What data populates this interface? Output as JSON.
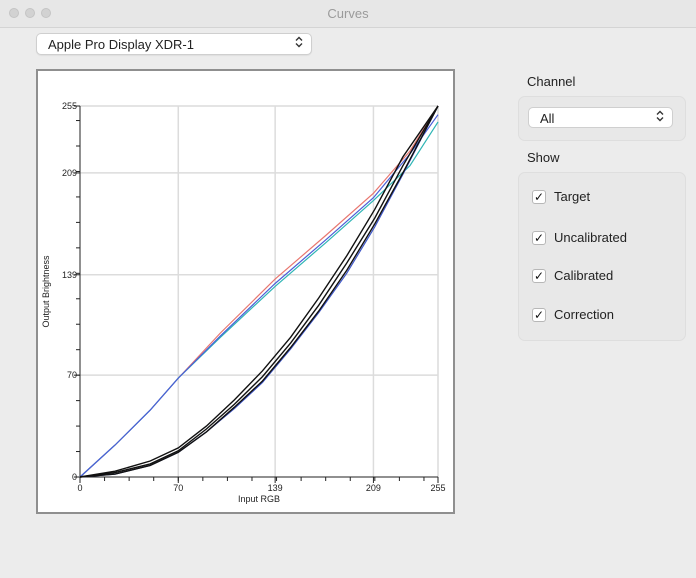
{
  "window": {
    "title": "Curves"
  },
  "display_select": {
    "value": "Apple Pro Display XDR-1",
    "icon": "updown-chevron-icon"
  },
  "channel": {
    "label": "Channel",
    "value": "All",
    "icon": "updown-chevron-icon"
  },
  "show": {
    "label": "Show",
    "options": [
      {
        "label": "Target",
        "checked": true
      },
      {
        "label": "Uncalibrated",
        "checked": true
      },
      {
        "label": "Calibrated",
        "checked": true
      },
      {
        "label": "Correction",
        "checked": true
      }
    ]
  },
  "chart_data": {
    "type": "line",
    "xlabel": "Input RGB",
    "ylabel": "Output Brightness",
    "xlim": [
      0,
      255
    ],
    "ylim": [
      0,
      255
    ],
    "xticks": [
      0,
      70,
      139,
      209,
      255
    ],
    "yticks": [
      0,
      70,
      139,
      209,
      255
    ],
    "grid": true,
    "series": [
      {
        "color": "#e8766f",
        "x": [
          0,
          25,
          50,
          70,
          100,
          139,
          175,
          209,
          235,
          255
        ],
        "y": [
          0,
          22,
          46,
          68,
          99,
          136,
          166,
          195,
          224,
          255
        ]
      },
      {
        "color": "#2fb5b5",
        "x": [
          0,
          25,
          50,
          70,
          100,
          139,
          175,
          209,
          235,
          255
        ],
        "y": [
          0,
          22,
          46,
          68,
          96,
          131,
          161,
          190,
          214,
          244
        ]
      },
      {
        "color": "#4a5fd8",
        "x": [
          0,
          25,
          50,
          70,
          100,
          139,
          175,
          209,
          235,
          255
        ],
        "y": [
          0,
          22,
          46,
          68,
          97,
          133,
          163,
          192,
          222,
          249
        ]
      },
      {
        "color": "#3f57c8",
        "x": [
          0,
          25,
          50,
          70,
          90,
          110,
          130,
          150,
          170,
          190,
          210,
          230,
          255
        ],
        "y": [
          0,
          2,
          8,
          17,
          31,
          47,
          65,
          88,
          113,
          140,
          172,
          208,
          255
        ]
      },
      {
        "color": "#111111",
        "x": [
          0,
          25,
          50,
          70,
          90,
          110,
          130,
          150,
          170,
          190,
          210,
          230,
          255
        ],
        "y": [
          0,
          4,
          11,
          20,
          35,
          53,
          73,
          96,
          123,
          152,
          184,
          220,
          255
        ]
      },
      {
        "color": "#111111",
        "x": [
          0,
          25,
          50,
          70,
          90,
          110,
          130,
          150,
          170,
          190,
          210,
          230,
          255
        ],
        "y": [
          0,
          3,
          9,
          18,
          33,
          50,
          69,
          92,
          118,
          147,
          178,
          214,
          255
        ]
      },
      {
        "color": "#111111",
        "x": [
          0,
          25,
          50,
          70,
          90,
          110,
          130,
          150,
          170,
          190,
          210,
          230,
          255
        ],
        "y": [
          0,
          2,
          8,
          17,
          31,
          48,
          66,
          89,
          114,
          142,
          174,
          209,
          255
        ]
      }
    ]
  }
}
